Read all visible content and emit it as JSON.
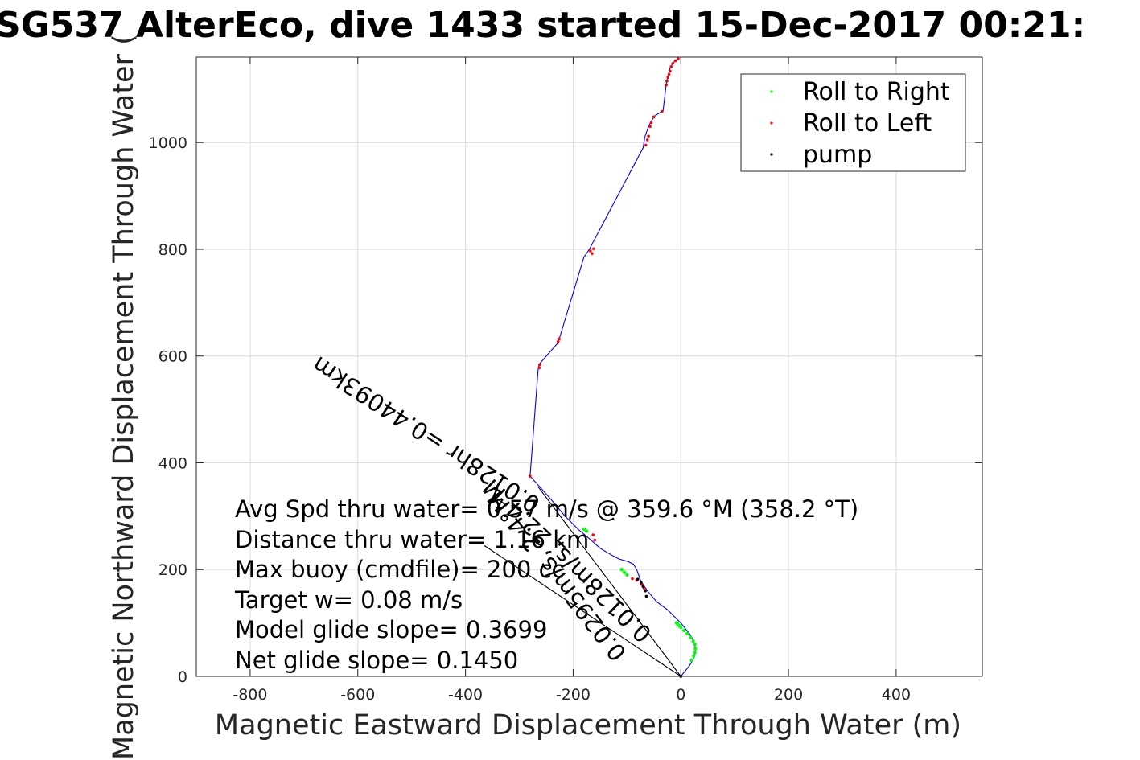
{
  "chart_data": {
    "type": "line",
    "title": "SG537 AlterEco, dive 1433 started 15-Dec-2017 00:21:",
    "xlabel": "Magnetic Eastward Displacement Through Water (m)",
    "ylabel": "Magnetic Northward Displacement Through Water (",
    "xlim": [
      -900,
      560
    ],
    "ylim": [
      0,
      1160
    ],
    "xticks": [
      -800,
      -600,
      -400,
      -200,
      0,
      200,
      400
    ],
    "yticks": [
      0,
      200,
      400,
      600,
      800,
      1000
    ],
    "grid": true,
    "legend_position": "top-right",
    "legend": [
      "Roll to Right",
      "Roll to Left",
      "pump"
    ],
    "colors": {
      "track": "#0000ff",
      "roll_right": "#00ff00",
      "roll_left": "#ff0000",
      "pump": "#000000",
      "axes": "#262626",
      "grid": "#dcdcdc"
    },
    "track": {
      "x": [
        0,
        8,
        16,
        22,
        26,
        27,
        26,
        22,
        16,
        8,
        0,
        -12,
        -25,
        -45,
        -62,
        -75,
        -82,
        -88,
        -98,
        -115,
        -130,
        -150,
        -170,
        -190,
        -215,
        -240,
        -262,
        -280,
        -265,
        -263,
        -228,
        -225,
        -180,
        -170,
        -70,
        -67,
        -60,
        -55,
        -48,
        -33,
        -27,
        -25,
        -22,
        -20,
        -14,
        -10,
        -5
      ],
      "y": [
        0,
        10,
        20,
        30,
        40,
        50,
        60,
        70,
        80,
        90,
        100,
        112,
        125,
        140,
        160,
        180,
        200,
        210,
        215,
        220,
        228,
        240,
        258,
        275,
        300,
        330,
        355,
        375,
        575,
        585,
        625,
        635,
        785,
        800,
        990,
        1010,
        1030,
        1040,
        1050,
        1060,
        1110,
        1120,
        1130,
        1140,
        1150,
        1153,
        1156
      ]
    },
    "roll_right": {
      "x": [
        20,
        24,
        26,
        27,
        26,
        23,
        18,
        12,
        6,
        0,
        -3,
        -6,
        -8,
        -110,
        -105,
        -100,
        -180,
        -175
      ],
      "y": [
        30,
        38,
        45,
        52,
        60,
        66,
        73,
        80,
        86,
        92,
        95,
        98,
        100,
        200,
        195,
        190,
        276,
        272
      ]
    },
    "roll_left": {
      "x": [
        0,
        -90,
        -82,
        -73,
        -68,
        -163,
        -160,
        -280,
        -263,
        -262,
        -228,
        -226,
        -165,
        -168,
        -162,
        -65,
        -62,
        -60,
        -57,
        -55,
        -50,
        -35,
        -27,
        -26,
        -24,
        -22,
        -20,
        -18,
        -15,
        -10,
        -5
      ],
      "y": [
        0,
        183,
        180,
        172,
        165,
        265,
        255,
        375,
        578,
        584,
        627,
        632,
        792,
        797,
        801,
        995,
        1005,
        1012,
        1030,
        1037,
        1048,
        1058,
        1108,
        1115,
        1122,
        1128,
        1134,
        1142,
        1148,
        1153,
        1157
      ]
    },
    "pump": {
      "x": [
        0,
        -80,
        -74,
        -70,
        -66,
        -64
      ],
      "y": [
        0,
        182,
        176,
        168,
        160,
        150
      ]
    },
    "annotations": [
      "Avg Spd thru water= 0.57 m/s @ 359.6 °M (358.2 °T)",
      "Distance thru water= 1.16 km",
      "Max buoy (cmdfile)= 200 cc",
      "Target w= 0.08 m/s",
      "Model glide slope= 0.3699",
      "Net glide slope= 0.1450"
    ],
    "current_vectors": [
      {
        "label": "0.0295m/s,  2.4°M",
        "x": [
          0,
          -265
        ],
        "y": [
          0,
          355
        ]
      },
      {
        "label": "0.0128m/s,  22.4°M",
        "x": [
          0,
          -365
        ],
        "y": [
          0,
          245
        ]
      }
    ],
    "current_label": "0.0128hr =0.44093km"
  }
}
